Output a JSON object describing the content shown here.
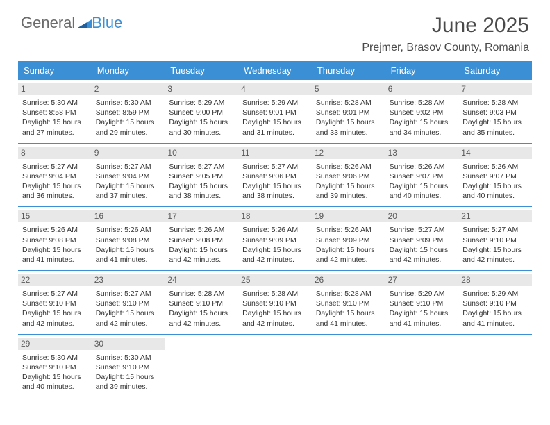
{
  "logo": {
    "part1": "General",
    "part2": "Blue"
  },
  "title": "June 2025",
  "location": "Prejmer, Brasov County, Romania",
  "colors": {
    "header_bg": "#3b8fd4",
    "header_text": "#ffffff",
    "daynum_bg": "#e8e8e8",
    "border": "#3b8fd4",
    "text": "#333333",
    "logo_gray": "#6b6b6b",
    "logo_blue": "#3b8fd4"
  },
  "typography": {
    "title_fontsize": 30,
    "location_fontsize": 16,
    "dayheader_fontsize": 13,
    "daynum_fontsize": 12,
    "info_fontsize": 10.5
  },
  "dayNames": [
    "Sunday",
    "Monday",
    "Tuesday",
    "Wednesday",
    "Thursday",
    "Friday",
    "Saturday"
  ],
  "weeks": [
    [
      {
        "num": "1",
        "sunrise": "5:30 AM",
        "sunset": "8:58 PM",
        "dl1": "Daylight: 15 hours",
        "dl2": "and 27 minutes."
      },
      {
        "num": "2",
        "sunrise": "5:30 AM",
        "sunset": "8:59 PM",
        "dl1": "Daylight: 15 hours",
        "dl2": "and 29 minutes."
      },
      {
        "num": "3",
        "sunrise": "5:29 AM",
        "sunset": "9:00 PM",
        "dl1": "Daylight: 15 hours",
        "dl2": "and 30 minutes."
      },
      {
        "num": "4",
        "sunrise": "5:29 AM",
        "sunset": "9:01 PM",
        "dl1": "Daylight: 15 hours",
        "dl2": "and 31 minutes."
      },
      {
        "num": "5",
        "sunrise": "5:28 AM",
        "sunset": "9:01 PM",
        "dl1": "Daylight: 15 hours",
        "dl2": "and 33 minutes."
      },
      {
        "num": "6",
        "sunrise": "5:28 AM",
        "sunset": "9:02 PM",
        "dl1": "Daylight: 15 hours",
        "dl2": "and 34 minutes."
      },
      {
        "num": "7",
        "sunrise": "5:28 AM",
        "sunset": "9:03 PM",
        "dl1": "Daylight: 15 hours",
        "dl2": "and 35 minutes."
      }
    ],
    [
      {
        "num": "8",
        "sunrise": "5:27 AM",
        "sunset": "9:04 PM",
        "dl1": "Daylight: 15 hours",
        "dl2": "and 36 minutes."
      },
      {
        "num": "9",
        "sunrise": "5:27 AM",
        "sunset": "9:04 PM",
        "dl1": "Daylight: 15 hours",
        "dl2": "and 37 minutes."
      },
      {
        "num": "10",
        "sunrise": "5:27 AM",
        "sunset": "9:05 PM",
        "dl1": "Daylight: 15 hours",
        "dl2": "and 38 minutes."
      },
      {
        "num": "11",
        "sunrise": "5:27 AM",
        "sunset": "9:06 PM",
        "dl1": "Daylight: 15 hours",
        "dl2": "and 38 minutes."
      },
      {
        "num": "12",
        "sunrise": "5:26 AM",
        "sunset": "9:06 PM",
        "dl1": "Daylight: 15 hours",
        "dl2": "and 39 minutes."
      },
      {
        "num": "13",
        "sunrise": "5:26 AM",
        "sunset": "9:07 PM",
        "dl1": "Daylight: 15 hours",
        "dl2": "and 40 minutes."
      },
      {
        "num": "14",
        "sunrise": "5:26 AM",
        "sunset": "9:07 PM",
        "dl1": "Daylight: 15 hours",
        "dl2": "and 40 minutes."
      }
    ],
    [
      {
        "num": "15",
        "sunrise": "5:26 AM",
        "sunset": "9:08 PM",
        "dl1": "Daylight: 15 hours",
        "dl2": "and 41 minutes."
      },
      {
        "num": "16",
        "sunrise": "5:26 AM",
        "sunset": "9:08 PM",
        "dl1": "Daylight: 15 hours",
        "dl2": "and 41 minutes."
      },
      {
        "num": "17",
        "sunrise": "5:26 AM",
        "sunset": "9:08 PM",
        "dl1": "Daylight: 15 hours",
        "dl2": "and 42 minutes."
      },
      {
        "num": "18",
        "sunrise": "5:26 AM",
        "sunset": "9:09 PM",
        "dl1": "Daylight: 15 hours",
        "dl2": "and 42 minutes."
      },
      {
        "num": "19",
        "sunrise": "5:26 AM",
        "sunset": "9:09 PM",
        "dl1": "Daylight: 15 hours",
        "dl2": "and 42 minutes."
      },
      {
        "num": "20",
        "sunrise": "5:27 AM",
        "sunset": "9:09 PM",
        "dl1": "Daylight: 15 hours",
        "dl2": "and 42 minutes."
      },
      {
        "num": "21",
        "sunrise": "5:27 AM",
        "sunset": "9:10 PM",
        "dl1": "Daylight: 15 hours",
        "dl2": "and 42 minutes."
      }
    ],
    [
      {
        "num": "22",
        "sunrise": "5:27 AM",
        "sunset": "9:10 PM",
        "dl1": "Daylight: 15 hours",
        "dl2": "and 42 minutes."
      },
      {
        "num": "23",
        "sunrise": "5:27 AM",
        "sunset": "9:10 PM",
        "dl1": "Daylight: 15 hours",
        "dl2": "and 42 minutes."
      },
      {
        "num": "24",
        "sunrise": "5:28 AM",
        "sunset": "9:10 PM",
        "dl1": "Daylight: 15 hours",
        "dl2": "and 42 minutes."
      },
      {
        "num": "25",
        "sunrise": "5:28 AM",
        "sunset": "9:10 PM",
        "dl1": "Daylight: 15 hours",
        "dl2": "and 42 minutes."
      },
      {
        "num": "26",
        "sunrise": "5:28 AM",
        "sunset": "9:10 PM",
        "dl1": "Daylight: 15 hours",
        "dl2": "and 41 minutes."
      },
      {
        "num": "27",
        "sunrise": "5:29 AM",
        "sunset": "9:10 PM",
        "dl1": "Daylight: 15 hours",
        "dl2": "and 41 minutes."
      },
      {
        "num": "28",
        "sunrise": "5:29 AM",
        "sunset": "9:10 PM",
        "dl1": "Daylight: 15 hours",
        "dl2": "and 41 minutes."
      }
    ],
    [
      {
        "num": "29",
        "sunrise": "5:30 AM",
        "sunset": "9:10 PM",
        "dl1": "Daylight: 15 hours",
        "dl2": "and 40 minutes."
      },
      {
        "num": "30",
        "sunrise": "5:30 AM",
        "sunset": "9:10 PM",
        "dl1": "Daylight: 15 hours",
        "dl2": "and 39 minutes."
      },
      null,
      null,
      null,
      null,
      null
    ]
  ]
}
